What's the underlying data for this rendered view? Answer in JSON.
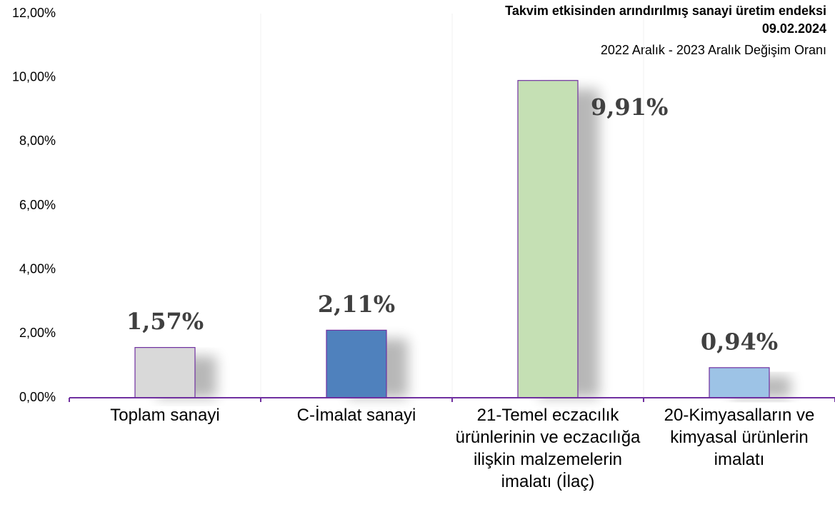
{
  "chart_data": {
    "type": "bar",
    "title": "Takvim etkisinden arındırılmış sanayi üretim endeksi",
    "date": "09.02.2024",
    "subtitle": "2022 Aralık - 2023 Aralık Değişim Oranı",
    "categories": [
      "Toplam sanayi",
      "C-İmalat sanayi",
      "21-Temel eczacılık ürünlerinin ve eczacılığa ilişkin malzemelerin imalatı (İlaç)",
      "20-Kimyasalların ve kimyasal ürünlerin imalatı"
    ],
    "values": [
      1.57,
      2.11,
      9.91,
      0.94
    ],
    "value_labels": [
      "1,57%",
      "2,11%",
      "9,91%",
      "0,94%"
    ],
    "colors": [
      "#d9d9d9",
      "#4f81bd",
      "#c5e0b4",
      "#9dc3e6"
    ],
    "ylim": [
      0,
      12
    ],
    "yticks": [
      {
        "value": 0,
        "label": "0,00%"
      },
      {
        "value": 2,
        "label": "2,00%"
      },
      {
        "value": 4,
        "label": "4,00%"
      },
      {
        "value": 6,
        "label": "6,00%"
      },
      {
        "value": 8,
        "label": "8,00%"
      },
      {
        "value": 10,
        "label": "10,00%"
      },
      {
        "value": 12,
        "label": "12,00%"
      }
    ]
  }
}
